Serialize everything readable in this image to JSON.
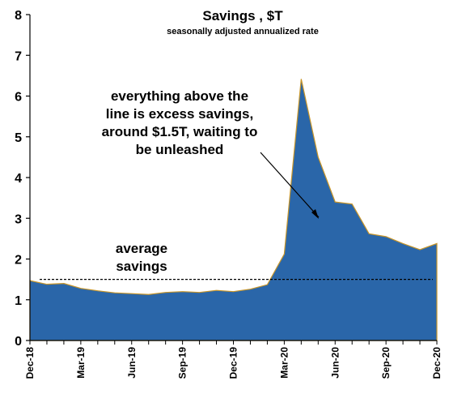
{
  "chart_data": {
    "type": "area",
    "title": "Savings , $T",
    "subtitle": "seasonally adjusted annualized rate",
    "xlabel": "",
    "ylabel": "",
    "ylim": [
      0,
      8
    ],
    "yticks": [
      "0",
      "1",
      "2",
      "3",
      "4",
      "5",
      "6",
      "7",
      "8"
    ],
    "x_tick_labels": [
      "Dec-18",
      "Mar-19",
      "Jun-19",
      "Sep-19",
      "Dec-19",
      "Mar-20",
      "Jun-20",
      "Sep-20",
      "Dec-20"
    ],
    "x": [
      "Dec-18",
      "Jan-19",
      "Feb-19",
      "Mar-19",
      "Apr-19",
      "May-19",
      "Jun-19",
      "Jul-19",
      "Aug-19",
      "Sep-19",
      "Oct-19",
      "Nov-19",
      "Dec-19",
      "Jan-20",
      "Feb-20",
      "Mar-20",
      "Apr-20",
      "May-20",
      "Jun-20",
      "Jul-20",
      "Aug-20",
      "Sep-20",
      "Oct-20",
      "Nov-20",
      "Dec-20"
    ],
    "series": [
      {
        "values": [
          1.47,
          1.38,
          1.4,
          1.28,
          1.22,
          1.17,
          1.15,
          1.13,
          1.18,
          1.2,
          1.18,
          1.23,
          1.2,
          1.26,
          1.37,
          2.12,
          6.42,
          4.5,
          3.4,
          3.35,
          2.62,
          2.55,
          2.38,
          2.23,
          2.38
        ]
      }
    ],
    "average_line": {
      "label": "average savings",
      "value": 1.5
    },
    "annotations": [
      {
        "text": "everything above the line is excess savings, around $1.5T, waiting to be unleashed"
      },
      {
        "text": "average savings"
      }
    ],
    "colors": {
      "fill": "#2a66a9",
      "outline": "#c8962a",
      "average_line": "#000000"
    },
    "grid": false,
    "legend": "none"
  },
  "annotations_text": {
    "excess_lines": [
      "everything above the",
      "line is excess savings,",
      "around $1.5T, waiting to",
      "be unleashed"
    ],
    "average_lines": [
      "average",
      "savings"
    ]
  }
}
